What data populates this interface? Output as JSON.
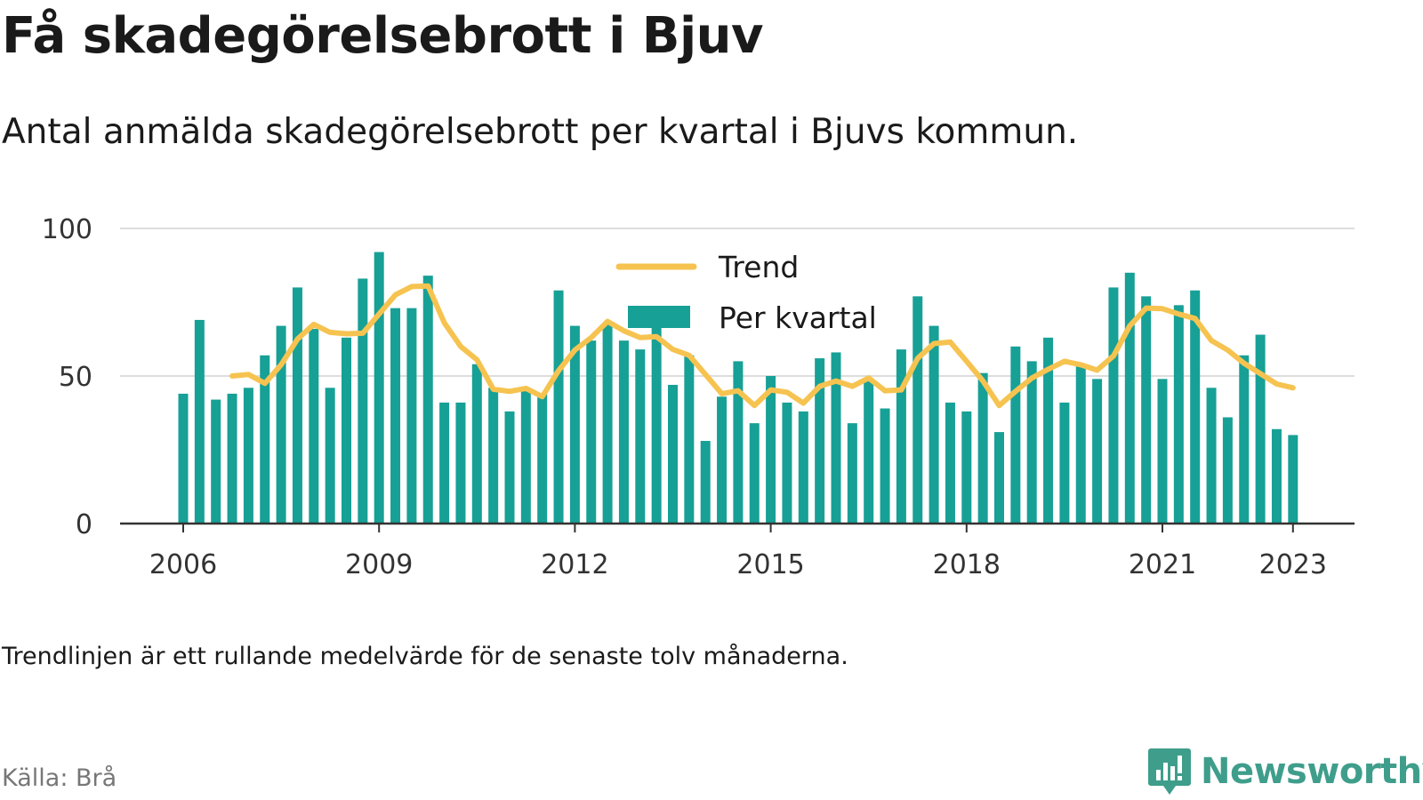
{
  "title": "Få skadegörelsebrott i Bjuv",
  "subtitle": "Antal anmälda skadegörelsebrott per kvartal i Bjuvs kommun.",
  "note": "Trendlinjen är ett rullande medelvärde för de senaste tolv månaderna.",
  "source": "Källa: Brå",
  "brand": {
    "name": "Newsworthy",
    "icon": "newsworthy-logo-icon"
  },
  "colors": {
    "bars": "#17a096",
    "trend": "#f6c350",
    "grid": "#dddddd",
    "axis": "#333333",
    "brand": "#3f9e8b"
  },
  "chart_data": {
    "type": "bar",
    "ylim": [
      0,
      100
    ],
    "yticks": [
      "0",
      "50",
      "100"
    ],
    "xticks": [
      "2006",
      "2009",
      "2012",
      "2015",
      "2018",
      "2021",
      "2023"
    ],
    "grid": true,
    "legend_position": "top-center",
    "categories": [
      "2006 Q1",
      "2006 Q2",
      "2006 Q3",
      "2006 Q4",
      "2007 Q1",
      "2007 Q2",
      "2007 Q3",
      "2007 Q4",
      "2008 Q1",
      "2008 Q2",
      "2008 Q3",
      "2008 Q4",
      "2009 Q1",
      "2009 Q2",
      "2009 Q3",
      "2009 Q4",
      "2010 Q1",
      "2010 Q2",
      "2010 Q3",
      "2010 Q4",
      "2011 Q1",
      "2011 Q2",
      "2011 Q3",
      "2011 Q4",
      "2012 Q1",
      "2012 Q2",
      "2012 Q3",
      "2012 Q4",
      "2013 Q1",
      "2013 Q2",
      "2013 Q3",
      "2013 Q4",
      "2014 Q1",
      "2014 Q2",
      "2014 Q3",
      "2014 Q4",
      "2015 Q1",
      "2015 Q2",
      "2015 Q3",
      "2015 Q4",
      "2016 Q1",
      "2016 Q2",
      "2016 Q3",
      "2016 Q4",
      "2017 Q1",
      "2017 Q2",
      "2017 Q3",
      "2017 Q4",
      "2018 Q1",
      "2018 Q2",
      "2018 Q3",
      "2018 Q4",
      "2019 Q1",
      "2019 Q2",
      "2019 Q3",
      "2019 Q4",
      "2020 Q1",
      "2020 Q2",
      "2020 Q3",
      "2020 Q4",
      "2021 Q1",
      "2021 Q2",
      "2021 Q3",
      "2021 Q4",
      "2022 Q1",
      "2022 Q2",
      "2022 Q3",
      "2022 Q4",
      "2023 Q1"
    ],
    "series": [
      {
        "name": "Per kvartal",
        "type": "bar",
        "values": [
          44,
          69,
          42,
          44,
          46,
          57,
          67,
          80,
          66,
          46,
          63,
          83,
          92,
          73,
          73,
          84,
          41,
          41,
          54,
          46,
          38,
          46,
          44,
          79,
          67,
          62,
          68,
          62,
          59,
          67,
          47,
          57,
          28,
          43,
          55,
          34,
          50,
          41,
          38,
          56,
          58,
          34,
          49,
          39,
          59,
          77,
          67,
          41,
          38,
          51,
          31,
          60,
          55,
          63,
          41,
          54,
          49,
          80,
          85,
          77,
          49,
          74,
          79,
          46,
          36,
          57,
          64,
          32,
          30
        ]
      },
      {
        "name": "Trend",
        "type": "line",
        "values": [
          null,
          null,
          null,
          50,
          50.5,
          47.5,
          53.8,
          62.5,
          67.5,
          64.8,
          64.3,
          64.5,
          71,
          77.5,
          80.3,
          80.5,
          68,
          60,
          55.5,
          45.5,
          44.8,
          45.8,
          43,
          51.8,
          58.8,
          63,
          68.5,
          65.3,
          63,
          63.3,
          59,
          57,
          50.5,
          44,
          45,
          40,
          45.3,
          44.5,
          40.8,
          46.5,
          48.3,
          46.5,
          49.3,
          45,
          45.3,
          56,
          61,
          61.5,
          55,
          48.3,
          40,
          44.8,
          49.3,
          52.3,
          55,
          53.8,
          52,
          56.8,
          67,
          73,
          72.8,
          71,
          69.5,
          62,
          58.8,
          54.3,
          50.8,
          47.3,
          46
        ]
      }
    ]
  }
}
